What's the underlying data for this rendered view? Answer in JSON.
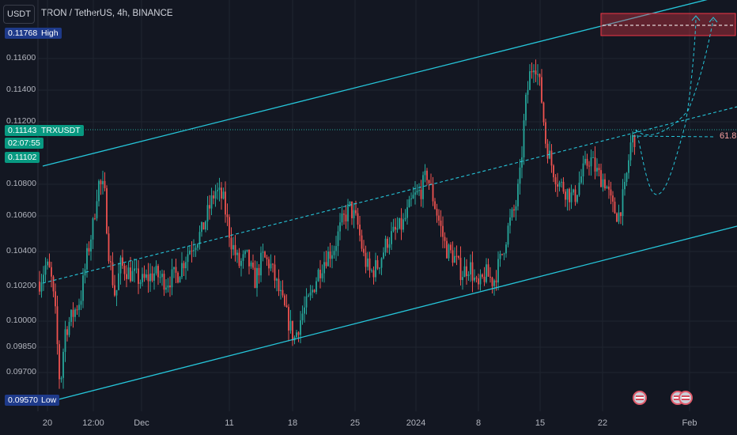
{
  "unit_label": "USDT",
  "legend": "TRON / TetherUS, 4h, BINANCE",
  "chart_data": {
    "type": "candlestick",
    "symbol": "TRXUSDT",
    "y_ticks": [
      "0.11600",
      "0.11400",
      "0.11200",
      "0.10800",
      "0.10600",
      "0.10400",
      "0.10200",
      "0.10000",
      "0.09850",
      "0.09700"
    ],
    "x_ticks": [
      "20",
      "12:00",
      "Dec",
      "11",
      "18",
      "25",
      "2024",
      "8",
      "15",
      "22",
      "Feb"
    ],
    "markers": {
      "high": {
        "label": "High",
        "value": "0.11768"
      },
      "low": {
        "label": "Low",
        "value": "0.09570"
      },
      "last": {
        "label": "TRXUSDT",
        "value": "0.11143",
        "countdown": "02:07:55",
        "prev": "0.11102"
      }
    },
    "fib_label": "61.8",
    "colors": {
      "up": "#26a69a",
      "down": "#ef5350",
      "channel": "#26c6da",
      "zone": "#f23645"
    }
  }
}
